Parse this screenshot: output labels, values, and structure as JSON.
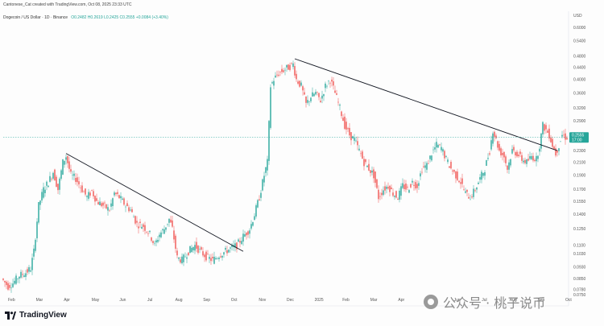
{
  "header": {
    "author_line": "Cantonese_Cat created with TradingView.com, Oct 08, 2025 23:33 UTC",
    "symbol": "Dogecoin / US Dollar · 1D · Binance",
    "ohlc": "O0.2482 H0.2619 L0.2425 C0.2555 +0.0084 (+3.40%)",
    "currency": "USD"
  },
  "footer": {
    "brand": "TradingView",
    "watermark": "公众号 · 桃子说币"
  },
  "colors": {
    "up": "#26a69a",
    "down": "#ef5350",
    "trendline": "#131722",
    "price_tag": "#26a69a"
  },
  "chart_data": {
    "type": "candlestick",
    "symbol": "DOGEUSD",
    "exchange": "Binance",
    "interval": "1D",
    "y_scale": "log",
    "ylim": [
      0.075,
      0.6
    ],
    "y_ticks": [
      "0.6000",
      "0.5400",
      "0.4800",
      "0.4400",
      "0.4000",
      "0.3600",
      "0.3200",
      "0.2900",
      "0.2600",
      "0.2300",
      "0.2100",
      "0.1900",
      "0.1700",
      "0.1550",
      "0.1400",
      "0.1250",
      "0.1100",
      "0.1030",
      "0.0930",
      "0.0850",
      "0.0780",
      "0.0750"
    ],
    "x_ticks": [
      "Feb",
      "Mar",
      "Apr",
      "May",
      "Jun",
      "Jul",
      "Aug",
      "Sep",
      "Oct",
      "Nov",
      "Dec",
      "2025",
      "Feb",
      "Mar",
      "Apr",
      "May",
      "Jun",
      "Jul",
      "Aug",
      "Sep",
      "Oct"
    ],
    "last_price": "0.2555",
    "last_price_sub": "17:00",
    "last_price_value": 0.2555,
    "price_path": [
      [
        0,
        0.085
      ],
      [
        8,
        0.08
      ],
      [
        14,
        0.082
      ],
      [
        22,
        0.087
      ],
      [
        30,
        0.089
      ],
      [
        36,
        0.092
      ],
      [
        40,
        0.105
      ],
      [
        46,
        0.15
      ],
      [
        52,
        0.17
      ],
      [
        58,
        0.18
      ],
      [
        64,
        0.195
      ],
      [
        70,
        0.17
      ],
      [
        76,
        0.21
      ],
      [
        80,
        0.22
      ],
      [
        86,
        0.19
      ],
      [
        92,
        0.185
      ],
      [
        100,
        0.17
      ],
      [
        106,
        0.16
      ],
      [
        112,
        0.168
      ],
      [
        118,
        0.155
      ],
      [
        126,
        0.15
      ],
      [
        134,
        0.145
      ],
      [
        140,
        0.165
      ],
      [
        146,
        0.16
      ],
      [
        154,
        0.15
      ],
      [
        160,
        0.145
      ],
      [
        168,
        0.13
      ],
      [
        176,
        0.128
      ],
      [
        184,
        0.12
      ],
      [
        190,
        0.11
      ],
      [
        196,
        0.12
      ],
      [
        202,
        0.125
      ],
      [
        208,
        0.135
      ],
      [
        212,
        0.125
      ],
      [
        218,
        0.1
      ],
      [
        224,
        0.098
      ],
      [
        232,
        0.105
      ],
      [
        240,
        0.11
      ],
      [
        248,
        0.104
      ],
      [
        256,
        0.1
      ],
      [
        262,
        0.098
      ],
      [
        270,
        0.102
      ],
      [
        278,
        0.105
      ],
      [
        286,
        0.108
      ],
      [
        292,
        0.11
      ],
      [
        300,
        0.118
      ],
      [
        308,
        0.125
      ],
      [
        314,
        0.14
      ],
      [
        320,
        0.16
      ],
      [
        326,
        0.19
      ],
      [
        330,
        0.21
      ],
      [
        334,
        0.38
      ],
      [
        338,
        0.4
      ],
      [
        344,
        0.42
      ],
      [
        350,
        0.43
      ],
      [
        356,
        0.44
      ],
      [
        362,
        0.45
      ],
      [
        366,
        0.4
      ],
      [
        372,
        0.38
      ],
      [
        378,
        0.33
      ],
      [
        384,
        0.35
      ],
      [
        390,
        0.36
      ],
      [
        396,
        0.34
      ],
      [
        402,
        0.38
      ],
      [
        408,
        0.4
      ],
      [
        414,
        0.36
      ],
      [
        420,
        0.32
      ],
      [
        426,
        0.28
      ],
      [
        432,
        0.26
      ],
      [
        438,
        0.25
      ],
      [
        444,
        0.23
      ],
      [
        450,
        0.21
      ],
      [
        456,
        0.2
      ],
      [
        462,
        0.19
      ],
      [
        468,
        0.16
      ],
      [
        474,
        0.17
      ],
      [
        480,
        0.175
      ],
      [
        486,
        0.165
      ],
      [
        492,
        0.16
      ],
      [
        498,
        0.175
      ],
      [
        504,
        0.17
      ],
      [
        510,
        0.18
      ],
      [
        516,
        0.175
      ],
      [
        522,
        0.2
      ],
      [
        528,
        0.205
      ],
      [
        534,
        0.225
      ],
      [
        540,
        0.24
      ],
      [
        546,
        0.235
      ],
      [
        552,
        0.215
      ],
      [
        558,
        0.2
      ],
      [
        564,
        0.19
      ],
      [
        570,
        0.18
      ],
      [
        576,
        0.165
      ],
      [
        582,
        0.16
      ],
      [
        588,
        0.17
      ],
      [
        594,
        0.185
      ],
      [
        600,
        0.2
      ],
      [
        606,
        0.23
      ],
      [
        610,
        0.27
      ],
      [
        614,
        0.25
      ],
      [
        618,
        0.23
      ],
      [
        624,
        0.22
      ],
      [
        628,
        0.2
      ],
      [
        634,
        0.23
      ],
      [
        640,
        0.225
      ],
      [
        646,
        0.215
      ],
      [
        652,
        0.21
      ],
      [
        658,
        0.22
      ],
      [
        664,
        0.215
      ],
      [
        668,
        0.24
      ],
      [
        672,
        0.28
      ],
      [
        676,
        0.27
      ],
      [
        680,
        0.26
      ],
      [
        684,
        0.24
      ],
      [
        688,
        0.225
      ],
      [
        692,
        0.24
      ],
      [
        696,
        0.26
      ],
      [
        700,
        0.2555
      ]
    ],
    "trendlines": [
      {
        "from": [
          78,
          0.225
        ],
        "to": [
          298,
          0.105
        ]
      },
      {
        "from": [
          362,
          0.47
        ],
        "to": [
          688,
          0.23
        ]
      }
    ]
  }
}
